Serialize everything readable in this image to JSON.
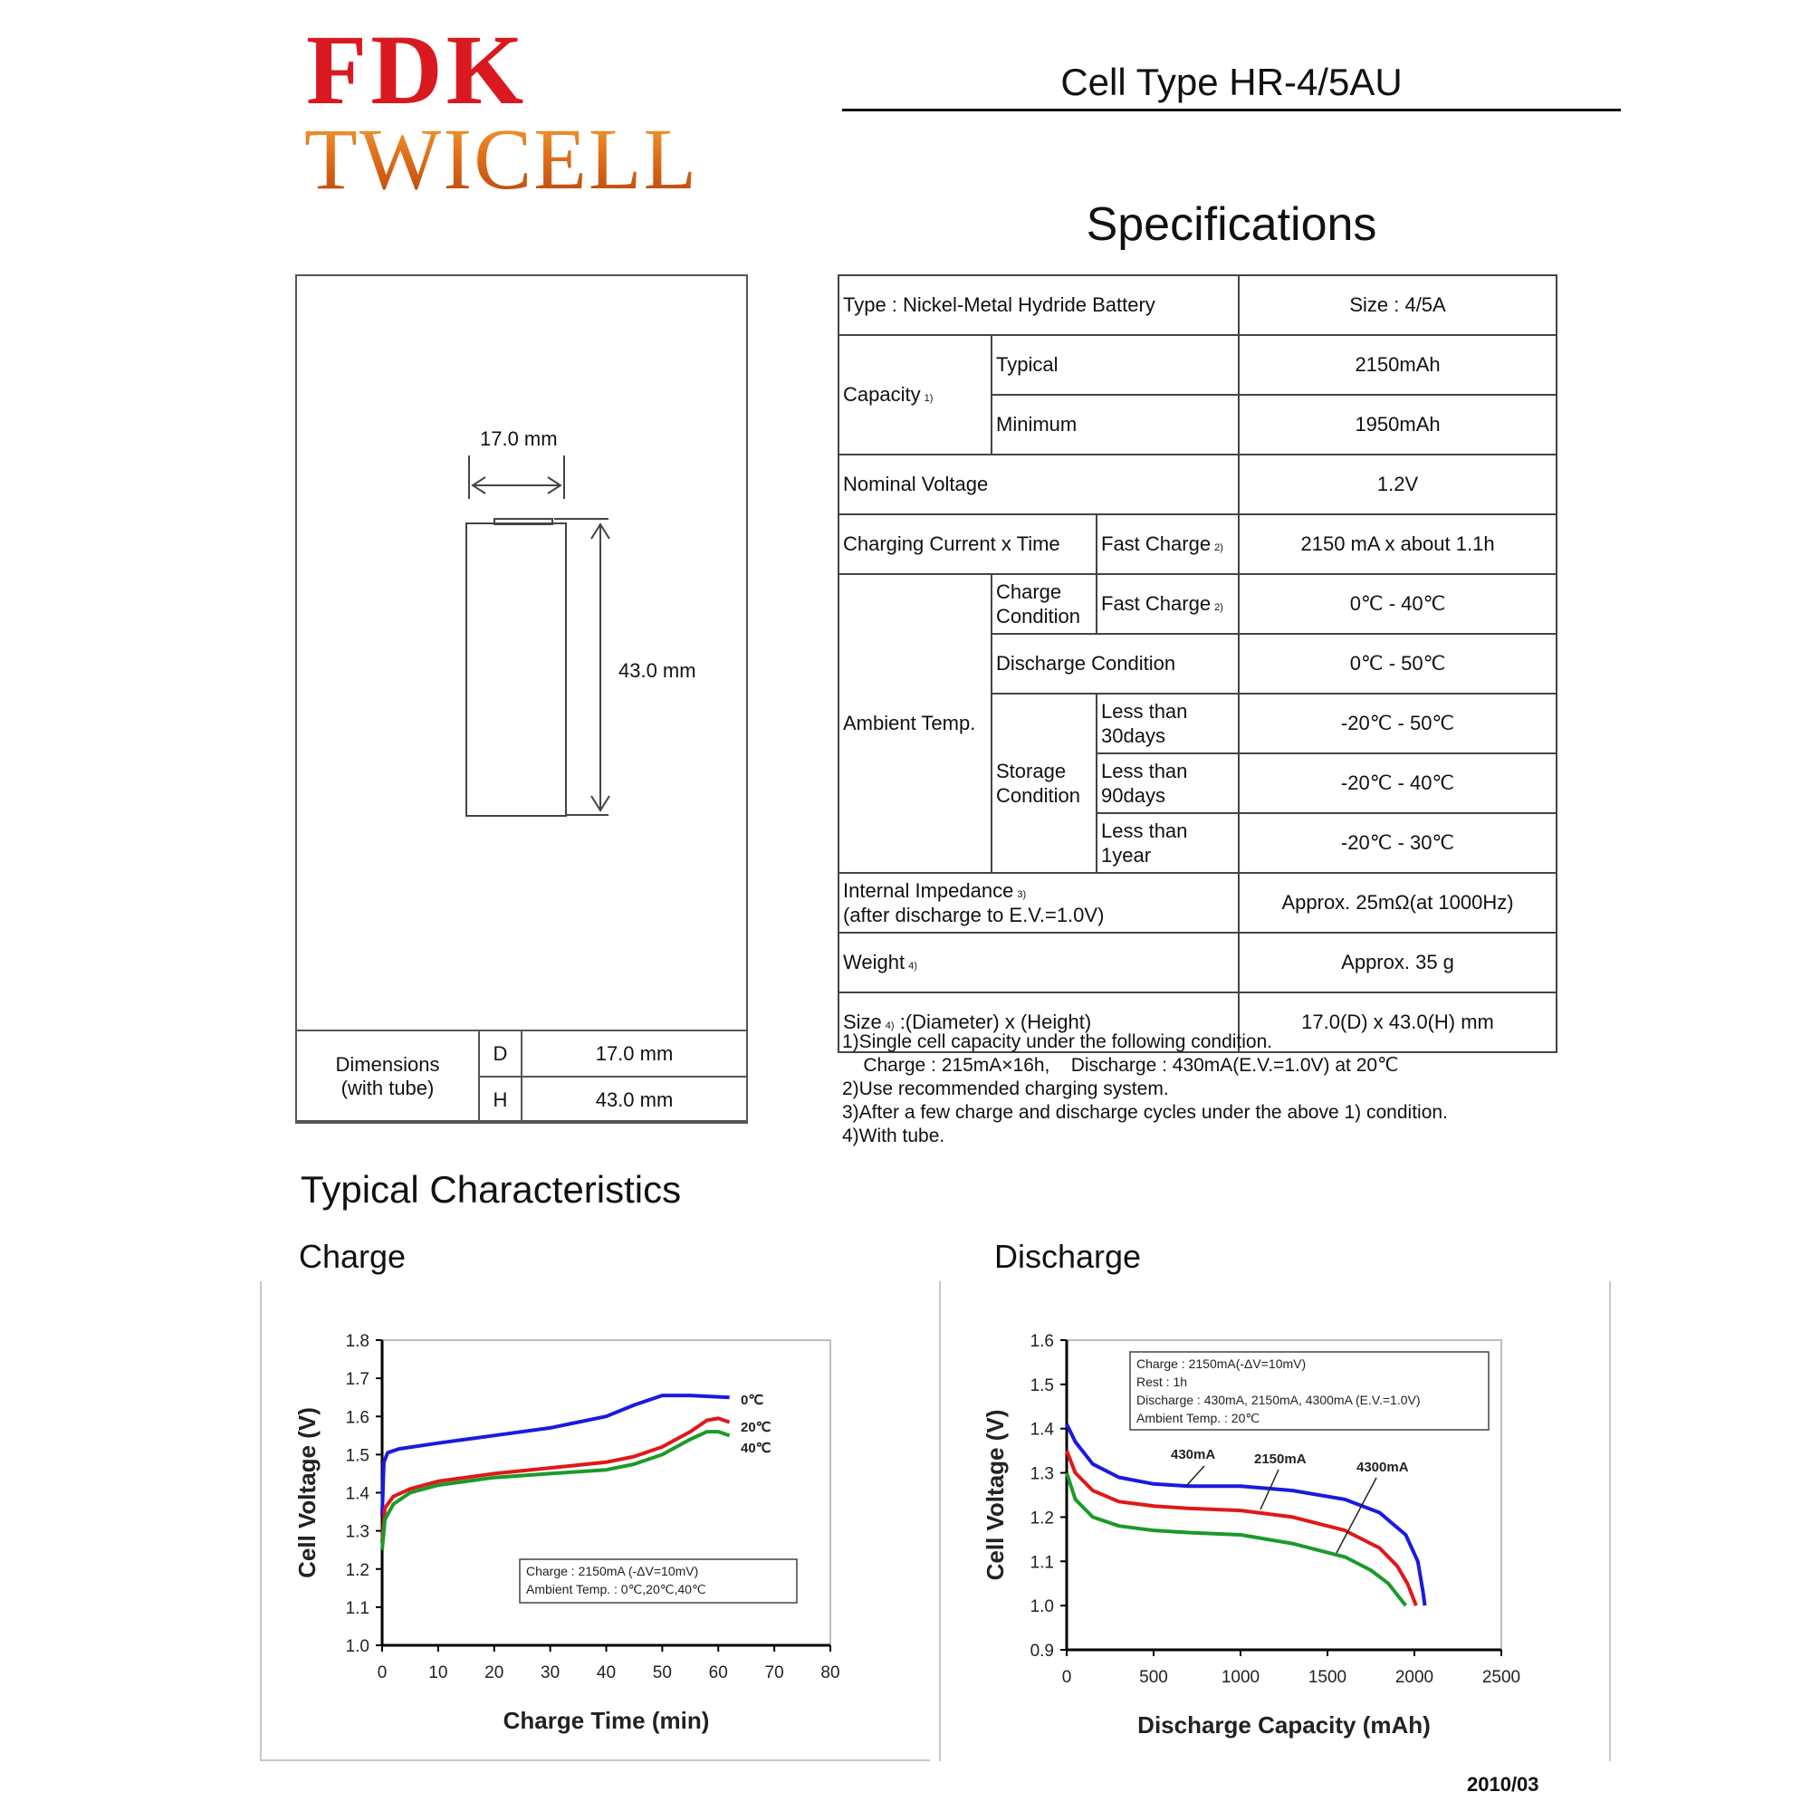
{
  "header": {
    "brand": "FDK",
    "product_line": "TWICELL",
    "cell_type": "Cell Type HR-4/5AU",
    "specs_title": "Specifications",
    "brand_color": "#d9191f",
    "product_color": "#e0701a"
  },
  "dimensions": {
    "width_label": "17.0 mm",
    "height_label": "43.0 mm",
    "table_label_line1": "Dimensions",
    "table_label_line2": "(with tube)",
    "d_key": "D",
    "d_value": "17.0 mm",
    "h_key": "H",
    "h_value": "43.0 mm"
  },
  "specs": {
    "type": "Type : Nickel-Metal Hydride Battery",
    "size": "Size : 4/5A",
    "capacity_label": "Capacity",
    "capacity_note": "1)",
    "typical_label": "Typical",
    "typical_value": "2150mAh",
    "minimum_label": "Minimum",
    "minimum_value": "1950mAh",
    "nominal_voltage_label": "Nominal Voltage",
    "nominal_voltage_value": "1.2V",
    "charging_label": "Charging Current x Time",
    "fast_charge_label": "Fast Charge",
    "fast_charge_note": "2)",
    "charging_value": "2150 mA x about 1.1h",
    "ambient_label": "Ambient Temp.",
    "charge_condition_line1": "Charge",
    "charge_condition_line2": "Condition",
    "charge_condition_value": "0℃ - 40℃",
    "discharge_condition_label": "Discharge Condition",
    "discharge_condition_value": "0℃ - 50℃",
    "storage_line1": "Storage",
    "storage_line2": "Condition",
    "storage_30_line1": "Less than",
    "storage_30_line2": "30days",
    "storage_30_value": "-20℃ - 50℃",
    "storage_90_line1": "Less than",
    "storage_90_line2": "90days",
    "storage_90_value": "-20℃ - 40℃",
    "storage_1y_line1": "Less than",
    "storage_1y_line2": "1year",
    "storage_1y_value": "-20℃ - 30℃",
    "impedance_line1": "Internal Impedance",
    "impedance_note": "3)",
    "impedance_line2": "(after discharge to E.V.=1.0V)",
    "impedance_value": "Approx. 25mΩ(at 1000Hz)",
    "weight_label": "Weight",
    "weight_note": "4)",
    "weight_value": "Approx. 35 g",
    "size_label_a": "Size",
    "size_note": "4)",
    "size_label_b": " :(Diameter) x (Height)",
    "size_value": "17.0(D) x 43.0(H) mm"
  },
  "notes": [
    "1)Single cell capacity under the following condition.",
    "    Charge : 215mA×16h,    Discharge : 430mA(E.V.=1.0V) at 20℃",
    "2)Use recommended charging system.",
    "3)After a few charge and discharge cycles under the above 1) condition.",
    "4)With tube."
  ],
  "sections": {
    "typical": "Typical Characteristics",
    "charge": "Charge",
    "discharge": "Discharge"
  },
  "chart_data": [
    {
      "type": "line",
      "xlabel": "Charge Time (min)",
      "ylabel": "Cell Voltage (V)",
      "xlim": [
        0,
        80
      ],
      "ylim": [
        1.0,
        1.8
      ],
      "xticks": [
        "0",
        "10",
        "20",
        "30",
        "40",
        "50",
        "60",
        "70",
        "80"
      ],
      "yticks": [
        "1.0",
        "1.1",
        "1.2",
        "1.3",
        "1.4",
        "1.5",
        "1.6",
        "1.7",
        "1.8"
      ],
      "grid": false,
      "annotation": [
        "Charge : 2150mA (-ΔV=10mV)",
        "Ambient Temp. : 0℃,20℃,40℃"
      ],
      "series": [
        {
          "name": "0℃",
          "color": "#1a1adf",
          "x": [
            0,
            0.3,
            1,
            3,
            10,
            20,
            30,
            40,
            45,
            50,
            55,
            62
          ],
          "y": [
            1.34,
            1.48,
            1.505,
            1.515,
            1.53,
            1.55,
            1.57,
            1.6,
            1.63,
            1.655,
            1.655,
            1.65
          ]
        },
        {
          "name": "20℃",
          "color": "#e01818",
          "x": [
            0,
            0.5,
            2,
            5,
            10,
            20,
            30,
            40,
            45,
            50,
            55,
            58,
            60,
            62
          ],
          "y": [
            1.27,
            1.36,
            1.39,
            1.41,
            1.43,
            1.45,
            1.465,
            1.48,
            1.495,
            1.52,
            1.56,
            1.59,
            1.595,
            1.585
          ]
        },
        {
          "name": "40℃",
          "color": "#1a9a2a",
          "x": [
            0,
            0.5,
            2,
            5,
            10,
            20,
            30,
            40,
            45,
            50,
            55,
            58,
            60,
            62
          ],
          "y": [
            1.25,
            1.33,
            1.37,
            1.4,
            1.42,
            1.44,
            1.45,
            1.46,
            1.475,
            1.5,
            1.54,
            1.56,
            1.56,
            1.55
          ]
        }
      ]
    },
    {
      "type": "line",
      "xlabel": "Discharge Capacity (mAh)",
      "ylabel": "Cell Voltage (V)",
      "xlim": [
        0,
        2500
      ],
      "ylim": [
        0.9,
        1.6
      ],
      "xticks": [
        "0",
        "500",
        "1000",
        "1500",
        "2000",
        "2500"
      ],
      "yticks": [
        "0.9",
        "1.0",
        "1.1",
        "1.2",
        "1.3",
        "1.4",
        "1.5",
        "1.6"
      ],
      "grid": false,
      "annotation": [
        "Charge : 2150mA(-ΔV=10mV)",
        "Rest : 1h",
        "Discharge : 430mA, 2150mA, 4300mA (E.V.=1.0V)",
        "Ambient Temp. : 20℃"
      ],
      "series": [
        {
          "name": "430mA",
          "color": "#1a1adf",
          "x": [
            0,
            50,
            150,
            300,
            500,
            700,
            1000,
            1300,
            1600,
            1800,
            1950,
            2020,
            2050,
            2060
          ],
          "y": [
            1.41,
            1.37,
            1.32,
            1.29,
            1.275,
            1.27,
            1.27,
            1.26,
            1.24,
            1.21,
            1.16,
            1.1,
            1.03,
            1.0
          ]
        },
        {
          "name": "2150mA",
          "color": "#e01818",
          "x": [
            0,
            50,
            150,
            300,
            500,
            700,
            1000,
            1300,
            1600,
            1800,
            1900,
            1960,
            1990,
            2010
          ],
          "y": [
            1.35,
            1.3,
            1.26,
            1.235,
            1.225,
            1.22,
            1.215,
            1.2,
            1.17,
            1.13,
            1.09,
            1.05,
            1.02,
            1.0
          ]
        },
        {
          "name": "4300mA",
          "color": "#1a9a2a",
          "x": [
            0,
            50,
            150,
            300,
            500,
            700,
            1000,
            1300,
            1600,
            1750,
            1850,
            1910,
            1950
          ],
          "y": [
            1.3,
            1.24,
            1.2,
            1.18,
            1.17,
            1.165,
            1.16,
            1.14,
            1.11,
            1.08,
            1.05,
            1.02,
            1.0
          ]
        }
      ]
    }
  ],
  "footer": {
    "date": "2010/03"
  }
}
